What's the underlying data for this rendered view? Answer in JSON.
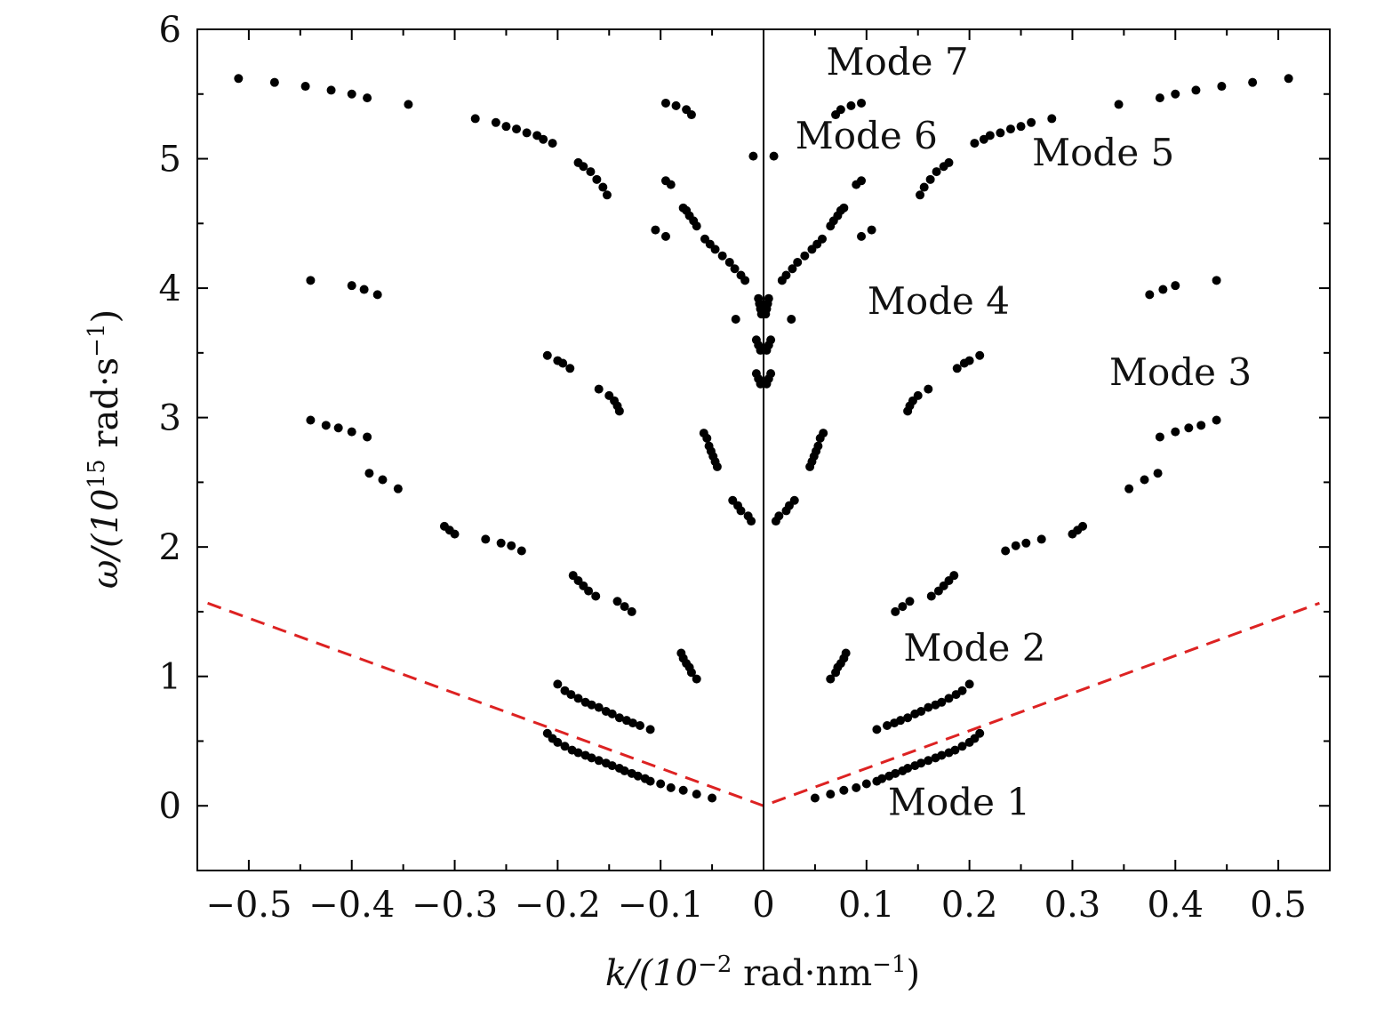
{
  "chart_data": {
    "type": "scatter",
    "xlabel": {
      "main": "k/(10",
      "sup": "−2",
      "mid": " rad·nm",
      "sup2": "−1",
      "end": ")"
    },
    "ylabel": {
      "main": "ω/(10",
      "sup": "15",
      "mid": " rad·s",
      "sup2": "−1",
      "end": ")"
    },
    "xlim": [
      -0.55,
      0.55
    ],
    "ylim": [
      -0.5,
      6
    ],
    "xticks": [
      -0.5,
      -0.4,
      -0.3,
      -0.2,
      -0.1,
      0,
      0.1,
      0.2,
      0.3,
      0.4,
      0.5
    ],
    "xtick_labels": [
      "−0.5",
      "−0.4",
      "−0.3",
      "−0.2",
      "−0.1",
      "0",
      "0.1",
      "0.2",
      "0.3",
      "0.4",
      "0.5"
    ],
    "yticks": [
      0,
      1,
      2,
      3,
      4,
      5,
      6
    ],
    "ytick_labels": [
      "0",
      "1",
      "2",
      "3",
      "4",
      "5",
      "6"
    ],
    "grid": false,
    "colors": {
      "points": "#000000",
      "light_line": "#dd2222",
      "axis": "#000000"
    },
    "light_line": {
      "style": "dashed",
      "slope": 2.9,
      "x_extent": [
        -0.54,
        0.54
      ]
    },
    "vertical_line_x": 0,
    "annotations": [
      {
        "text": "Mode 7",
        "x": 0.13,
        "y": 5.65
      },
      {
        "text": "Mode 6",
        "x": 0.1,
        "y": 5.08
      },
      {
        "text": "Mode 5",
        "x": 0.33,
        "y": 4.95
      },
      {
        "text": "Mode 4",
        "x": 0.17,
        "y": 3.8
      },
      {
        "text": "Mode 3",
        "x": 0.405,
        "y": 3.25
      },
      {
        "text": "Mode 2",
        "x": 0.205,
        "y": 1.12
      },
      {
        "text": "Mode 1",
        "x": 0.19,
        "y": -0.07
      }
    ],
    "series": [
      {
        "points": [
          [
            0.05,
            0.06
          ],
          [
            0.065,
            0.09
          ],
          [
            0.078,
            0.12
          ],
          [
            0.09,
            0.14
          ],
          [
            0.1,
            0.17
          ],
          [
            0.11,
            0.19
          ],
          [
            0.115,
            0.21
          ],
          [
            0.122,
            0.23
          ],
          [
            0.128,
            0.25
          ],
          [
            0.135,
            0.27
          ],
          [
            0.14,
            0.29
          ],
          [
            0.147,
            0.31
          ],
          [
            0.153,
            0.33
          ],
          [
            0.16,
            0.35
          ],
          [
            0.167,
            0.37
          ],
          [
            0.173,
            0.39
          ],
          [
            0.18,
            0.41
          ],
          [
            0.186,
            0.43
          ],
          [
            0.193,
            0.46
          ],
          [
            0.2,
            0.49
          ],
          [
            0.205,
            0.52
          ],
          [
            0.21,
            0.56
          ],
          [
            0.11,
            0.59
          ],
          [
            0.12,
            0.62
          ],
          [
            0.127,
            0.64
          ],
          [
            0.133,
            0.66
          ],
          [
            0.14,
            0.68
          ],
          [
            0.147,
            0.71
          ],
          [
            0.153,
            0.73
          ],
          [
            0.16,
            0.76
          ],
          [
            0.167,
            0.78
          ],
          [
            0.173,
            0.8
          ],
          [
            0.18,
            0.83
          ],
          [
            0.187,
            0.86
          ],
          [
            0.193,
            0.89
          ],
          [
            0.2,
            0.94
          ],
          [
            0.065,
            0.98
          ],
          [
            0.07,
            1.03
          ],
          [
            0.072,
            1.07
          ],
          [
            0.075,
            1.1
          ],
          [
            0.078,
            1.14
          ],
          [
            0.08,
            1.18
          ],
          [
            0.128,
            1.5
          ],
          [
            0.135,
            1.54
          ],
          [
            0.142,
            1.58
          ],
          [
            0.163,
            1.62
          ],
          [
            0.17,
            1.66
          ],
          [
            0.175,
            1.7
          ],
          [
            0.18,
            1.74
          ],
          [
            0.185,
            1.78
          ],
          [
            0.235,
            1.97
          ],
          [
            0.245,
            2.01
          ],
          [
            0.255,
            2.03
          ],
          [
            0.27,
            2.06
          ],
          [
            0.3,
            2.1
          ],
          [
            0.305,
            2.13
          ],
          [
            0.31,
            2.16
          ],
          [
            0.355,
            2.45
          ],
          [
            0.37,
            2.52
          ],
          [
            0.383,
            2.57
          ],
          [
            0.385,
            2.85
          ],
          [
            0.4,
            2.89
          ],
          [
            0.413,
            2.92
          ],
          [
            0.425,
            2.94
          ],
          [
            0.44,
            2.98
          ],
          [
            0.012,
            2.2
          ],
          [
            0.015,
            2.24
          ],
          [
            0.022,
            2.28
          ],
          [
            0.025,
            2.32
          ],
          [
            0.03,
            2.36
          ],
          [
            0.045,
            2.62
          ],
          [
            0.047,
            2.66
          ],
          [
            0.049,
            2.7
          ],
          [
            0.051,
            2.74
          ],
          [
            0.053,
            2.78
          ],
          [
            0.055,
            2.84
          ],
          [
            0.058,
            2.88
          ],
          [
            0.003,
            3.26
          ],
          [
            0.005,
            3.3
          ],
          [
            0.007,
            3.34
          ],
          [
            0.003,
            3.52
          ],
          [
            0.005,
            3.56
          ],
          [
            0.007,
            3.6
          ],
          [
            0.002,
            3.8
          ],
          [
            0.003,
            3.84
          ],
          [
            0.004,
            3.88
          ],
          [
            0.005,
            3.92
          ],
          [
            0.027,
            3.76
          ],
          [
            0.14,
            3.05
          ],
          [
            0.142,
            3.09
          ],
          [
            0.145,
            3.13
          ],
          [
            0.15,
            3.17
          ],
          [
            0.16,
            3.22
          ],
          [
            0.188,
            3.38
          ],
          [
            0.195,
            3.42
          ],
          [
            0.2,
            3.44
          ],
          [
            0.21,
            3.48
          ],
          [
            0.375,
            3.95
          ],
          [
            0.388,
            3.99
          ],
          [
            0.4,
            4.02
          ],
          [
            0.44,
            4.06
          ],
          [
            0.018,
            4.06
          ],
          [
            0.022,
            4.1
          ],
          [
            0.028,
            4.15
          ],
          [
            0.033,
            4.2
          ],
          [
            0.04,
            4.25
          ],
          [
            0.047,
            4.3
          ],
          [
            0.052,
            4.34
          ],
          [
            0.057,
            4.38
          ],
          [
            0.065,
            4.48
          ],
          [
            0.068,
            4.52
          ],
          [
            0.072,
            4.56
          ],
          [
            0.075,
            4.6
          ],
          [
            0.078,
            4.62
          ],
          [
            0.09,
            4.8
          ],
          [
            0.095,
            4.83
          ],
          [
            0.095,
            4.4
          ],
          [
            0.105,
            4.45
          ],
          [
            0.152,
            4.72
          ],
          [
            0.156,
            4.78
          ],
          [
            0.162,
            4.84
          ],
          [
            0.168,
            4.9
          ],
          [
            0.175,
            4.94
          ],
          [
            0.18,
            4.97
          ],
          [
            0.205,
            5.12
          ],
          [
            0.214,
            5.15
          ],
          [
            0.22,
            5.18
          ],
          [
            0.23,
            5.2
          ],
          [
            0.24,
            5.23
          ],
          [
            0.25,
            5.25
          ],
          [
            0.26,
            5.28
          ],
          [
            0.28,
            5.31
          ],
          [
            0.345,
            5.42
          ],
          [
            0.385,
            5.47
          ],
          [
            0.4,
            5.5
          ],
          [
            0.42,
            5.53
          ],
          [
            0.445,
            5.56
          ],
          [
            0.475,
            5.59
          ],
          [
            0.51,
            5.62
          ],
          [
            0.01,
            5.02
          ],
          [
            0.07,
            5.34
          ],
          [
            0.075,
            5.38
          ],
          [
            0.085,
            5.41
          ],
          [
            0.095,
            5.43
          ],
          [
            -0.05,
            0.06
          ],
          [
            -0.065,
            0.09
          ],
          [
            -0.078,
            0.12
          ],
          [
            -0.09,
            0.14
          ],
          [
            -0.1,
            0.17
          ],
          [
            -0.11,
            0.19
          ],
          [
            -0.115,
            0.21
          ],
          [
            -0.122,
            0.23
          ],
          [
            -0.128,
            0.25
          ],
          [
            -0.135,
            0.27
          ],
          [
            -0.14,
            0.29
          ],
          [
            -0.147,
            0.31
          ],
          [
            -0.153,
            0.33
          ],
          [
            -0.16,
            0.35
          ],
          [
            -0.167,
            0.37
          ],
          [
            -0.173,
            0.39
          ],
          [
            -0.18,
            0.41
          ],
          [
            -0.186,
            0.43
          ],
          [
            -0.193,
            0.46
          ],
          [
            -0.2,
            0.49
          ],
          [
            -0.205,
            0.52
          ],
          [
            -0.21,
            0.56
          ],
          [
            -0.11,
            0.59
          ],
          [
            -0.12,
            0.62
          ],
          [
            -0.127,
            0.64
          ],
          [
            -0.133,
            0.66
          ],
          [
            -0.14,
            0.68
          ],
          [
            -0.147,
            0.71
          ],
          [
            -0.153,
            0.73
          ],
          [
            -0.16,
            0.76
          ],
          [
            -0.167,
            0.78
          ],
          [
            -0.173,
            0.8
          ],
          [
            -0.18,
            0.83
          ],
          [
            -0.187,
            0.86
          ],
          [
            -0.193,
            0.89
          ],
          [
            -0.2,
            0.94
          ],
          [
            -0.065,
            0.98
          ],
          [
            -0.07,
            1.03
          ],
          [
            -0.072,
            1.07
          ],
          [
            -0.075,
            1.1
          ],
          [
            -0.078,
            1.14
          ],
          [
            -0.08,
            1.18
          ],
          [
            -0.128,
            1.5
          ],
          [
            -0.135,
            1.54
          ],
          [
            -0.142,
            1.58
          ],
          [
            -0.163,
            1.62
          ],
          [
            -0.17,
            1.66
          ],
          [
            -0.175,
            1.7
          ],
          [
            -0.18,
            1.74
          ],
          [
            -0.185,
            1.78
          ],
          [
            -0.235,
            1.97
          ],
          [
            -0.245,
            2.01
          ],
          [
            -0.255,
            2.03
          ],
          [
            -0.27,
            2.06
          ],
          [
            -0.3,
            2.1
          ],
          [
            -0.305,
            2.13
          ],
          [
            -0.31,
            2.16
          ],
          [
            -0.355,
            2.45
          ],
          [
            -0.37,
            2.52
          ],
          [
            -0.383,
            2.57
          ],
          [
            -0.385,
            2.85
          ],
          [
            -0.4,
            2.89
          ],
          [
            -0.413,
            2.92
          ],
          [
            -0.425,
            2.94
          ],
          [
            -0.44,
            2.98
          ],
          [
            -0.012,
            2.2
          ],
          [
            -0.015,
            2.24
          ],
          [
            -0.022,
            2.28
          ],
          [
            -0.025,
            2.32
          ],
          [
            -0.03,
            2.36
          ],
          [
            -0.045,
            2.62
          ],
          [
            -0.047,
            2.66
          ],
          [
            -0.049,
            2.7
          ],
          [
            -0.051,
            2.74
          ],
          [
            -0.053,
            2.78
          ],
          [
            -0.055,
            2.84
          ],
          [
            -0.058,
            2.88
          ],
          [
            -0.003,
            3.26
          ],
          [
            -0.005,
            3.3
          ],
          [
            -0.007,
            3.34
          ],
          [
            -0.003,
            3.52
          ],
          [
            -0.005,
            3.56
          ],
          [
            -0.007,
            3.6
          ],
          [
            -0.002,
            3.8
          ],
          [
            -0.003,
            3.84
          ],
          [
            -0.004,
            3.88
          ],
          [
            -0.005,
            3.92
          ],
          [
            -0.027,
            3.76
          ],
          [
            -0.14,
            3.05
          ],
          [
            -0.142,
            3.09
          ],
          [
            -0.145,
            3.13
          ],
          [
            -0.15,
            3.17
          ],
          [
            -0.16,
            3.22
          ],
          [
            -0.188,
            3.38
          ],
          [
            -0.195,
            3.42
          ],
          [
            -0.2,
            3.44
          ],
          [
            -0.21,
            3.48
          ],
          [
            -0.375,
            3.95
          ],
          [
            -0.388,
            3.99
          ],
          [
            -0.4,
            4.02
          ],
          [
            -0.44,
            4.06
          ],
          [
            -0.018,
            4.06
          ],
          [
            -0.022,
            4.1
          ],
          [
            -0.028,
            4.15
          ],
          [
            -0.033,
            4.2
          ],
          [
            -0.04,
            4.25
          ],
          [
            -0.047,
            4.3
          ],
          [
            -0.052,
            4.34
          ],
          [
            -0.057,
            4.38
          ],
          [
            -0.065,
            4.48
          ],
          [
            -0.068,
            4.52
          ],
          [
            -0.072,
            4.56
          ],
          [
            -0.075,
            4.6
          ],
          [
            -0.078,
            4.62
          ],
          [
            -0.09,
            4.8
          ],
          [
            -0.095,
            4.83
          ],
          [
            -0.095,
            4.4
          ],
          [
            -0.105,
            4.45
          ],
          [
            -0.152,
            4.72
          ],
          [
            -0.156,
            4.78
          ],
          [
            -0.162,
            4.84
          ],
          [
            -0.168,
            4.9
          ],
          [
            -0.175,
            4.94
          ],
          [
            -0.18,
            4.97
          ],
          [
            -0.205,
            5.12
          ],
          [
            -0.214,
            5.15
          ],
          [
            -0.22,
            5.18
          ],
          [
            -0.23,
            5.2
          ],
          [
            -0.24,
            5.23
          ],
          [
            -0.25,
            5.25
          ],
          [
            -0.26,
            5.28
          ],
          [
            -0.28,
            5.31
          ],
          [
            -0.345,
            5.42
          ],
          [
            -0.385,
            5.47
          ],
          [
            -0.4,
            5.5
          ],
          [
            -0.42,
            5.53
          ],
          [
            -0.445,
            5.56
          ],
          [
            -0.475,
            5.59
          ],
          [
            -0.51,
            5.62
          ],
          [
            -0.01,
            5.02
          ],
          [
            -0.07,
            5.34
          ],
          [
            -0.075,
            5.38
          ],
          [
            -0.085,
            5.41
          ],
          [
            -0.095,
            5.43
          ]
        ]
      }
    ]
  }
}
